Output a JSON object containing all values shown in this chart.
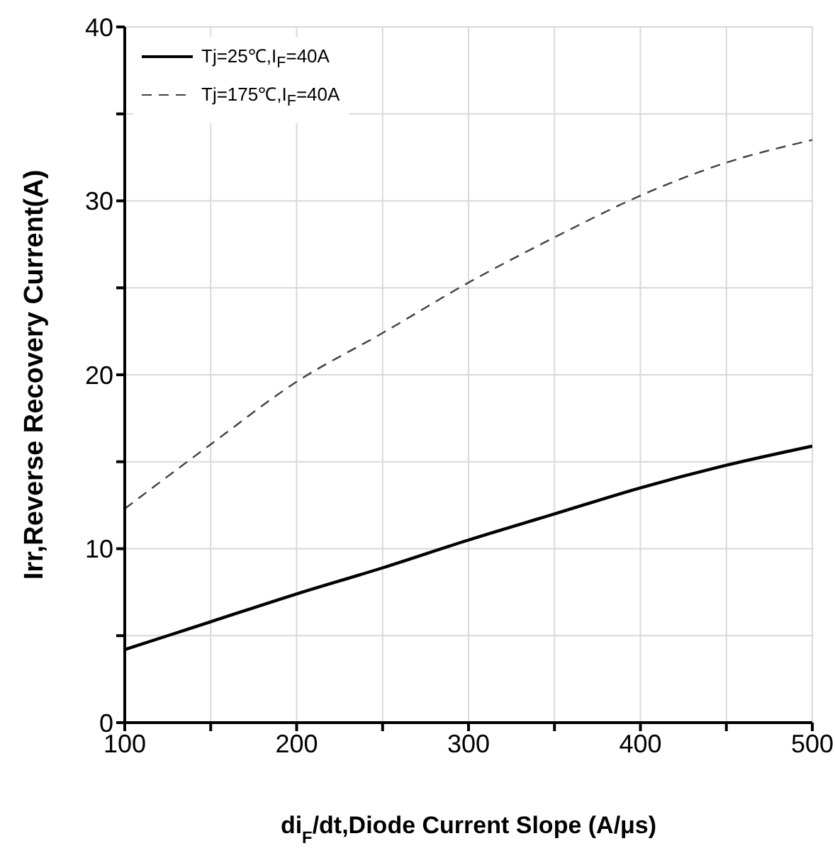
{
  "chart_data": {
    "type": "line",
    "xlabel": "di$_{F}$/dt,Diode Current Slope (A/μs)",
    "ylabel": "Irr,Reverse Recovery Current(A)",
    "x": [
      100,
      150,
      200,
      250,
      300,
      350,
      400,
      450,
      500
    ],
    "series": [
      {
        "name": "Tj=25℃,I$_{F}$=40A",
        "color": "#000000",
        "line_style": "solid",
        "values": [
          4.2,
          5.8,
          7.4,
          8.9,
          10.5,
          12.0,
          13.5,
          14.8,
          15.9
        ]
      },
      {
        "name": "Tj=175℃,I$_{F}$=40A",
        "color": "#404040",
        "line_style": "dashed",
        "values": [
          12.3,
          16.0,
          19.6,
          22.4,
          25.3,
          27.9,
          30.3,
          32.2,
          33.5
        ]
      }
    ],
    "xlim": [
      100,
      500
    ],
    "xticks": [
      100,
      {
        "value": 150,
        "label": null
      },
      200,
      {
        "value": 250,
        "label": null
      },
      300,
      {
        "value": 350,
        "label": null
      },
      400,
      {
        "value": 450,
        "label": null
      },
      500
    ],
    "ylim": [
      0,
      40
    ],
    "yticks": [
      0,
      {
        "value": 5,
        "label": null
      },
      10,
      {
        "value": 15,
        "label": null
      },
      20,
      {
        "value": 25,
        "label": null
      },
      30,
      {
        "value": 35,
        "label": null
      },
      40
    ],
    "grid": true,
    "legend": "top left",
    "marker": "none"
  }
}
